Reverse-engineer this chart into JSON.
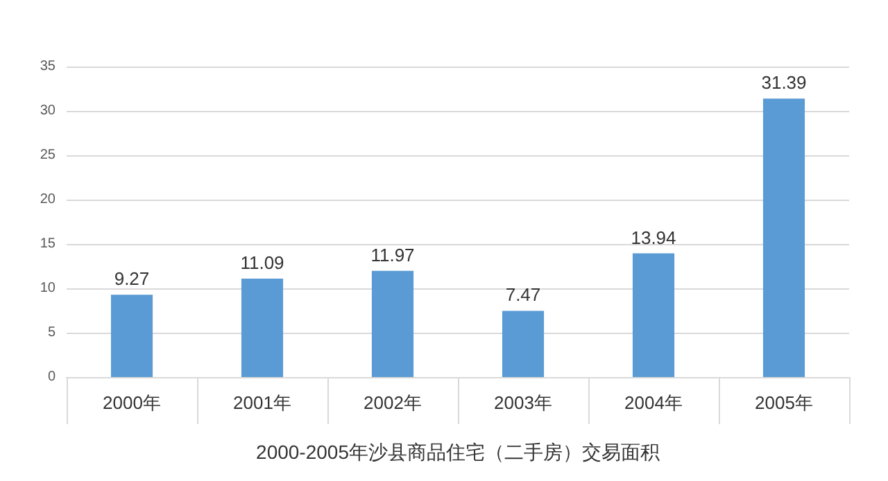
{
  "chart_data": {
    "type": "bar",
    "xlabel": "2000-2005年沙县商品住宅（二手房）交易面积",
    "categories": [
      "2000年",
      "2001年",
      "2002年",
      "2003年",
      "2004年",
      "2005年"
    ],
    "values": [
      9.27,
      11.09,
      11.97,
      7.47,
      13.94,
      31.39
    ],
    "color": "#5b9bd5",
    "ylim": [
      0,
      35
    ],
    "yticks": [
      0,
      5,
      10,
      15,
      20,
      25,
      30,
      35
    ],
    "grid": "y",
    "data_labels": true
  }
}
